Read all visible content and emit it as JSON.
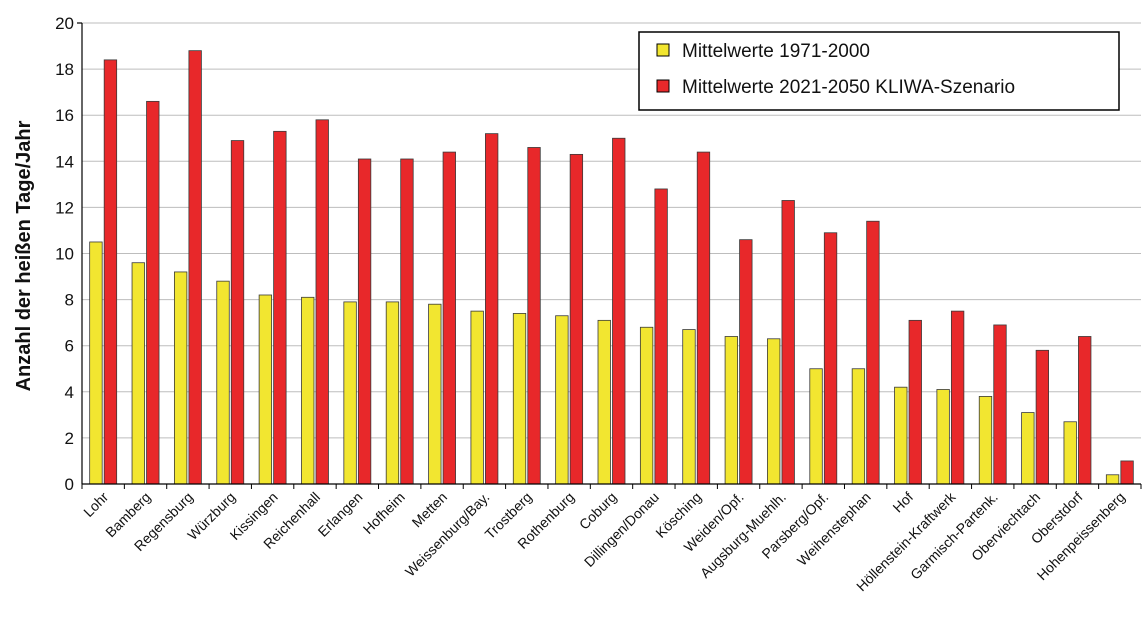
{
  "chart_data": {
    "type": "bar",
    "title": "",
    "xlabel": "",
    "ylabel": "Anzahl der heißen Tage/Jahr",
    "ylim": [
      0,
      20
    ],
    "yticks": [
      0,
      2,
      4,
      6,
      8,
      10,
      12,
      14,
      16,
      18,
      20
    ],
    "grid": true,
    "legend_position": "top-right",
    "categories": [
      "Lohr",
      "Bamberg",
      "Regensburg",
      "Würzburg",
      "Kissingen",
      "Reichenhall",
      "Erlangen",
      "Hofheim",
      "Metten",
      "Weissenburg/Bay.",
      "Trostberg",
      "Rothenburg",
      "Coburg",
      "Dillingen/Donau",
      "Kösching",
      "Weiden/Opf.",
      "Augsburg-Muehlh.",
      "Parsberg/Opf.",
      "Weihenstephan",
      "Hof",
      "Höllenstein-Kraftwerk",
      "Garmisch-Partenk.",
      "Oberviechtach",
      "Oberstdorf",
      "Hohenpeissenberg"
    ],
    "series": [
      {
        "name": "Mittelwerte 1971-2000",
        "color": "#f2e630",
        "values": [
          10.5,
          9.6,
          9.2,
          8.8,
          8.2,
          8.1,
          7.9,
          7.9,
          7.8,
          7.5,
          7.4,
          7.3,
          7.1,
          6.8,
          6.7,
          6.4,
          6.3,
          5.0,
          5.0,
          4.2,
          4.1,
          3.8,
          3.1,
          2.7,
          0.4
        ]
      },
      {
        "name": "Mittelwerte 2021-2050 KLIWA-Szenario",
        "color": "#e8282a",
        "values": [
          18.4,
          16.6,
          18.8,
          14.9,
          15.3,
          15.8,
          14.1,
          14.1,
          14.4,
          15.2,
          14.6,
          14.3,
          15.0,
          12.8,
          14.4,
          10.6,
          12.3,
          10.9,
          11.4,
          7.1,
          7.5,
          6.9,
          5.8,
          6.4,
          1.0
        ]
      }
    ]
  }
}
